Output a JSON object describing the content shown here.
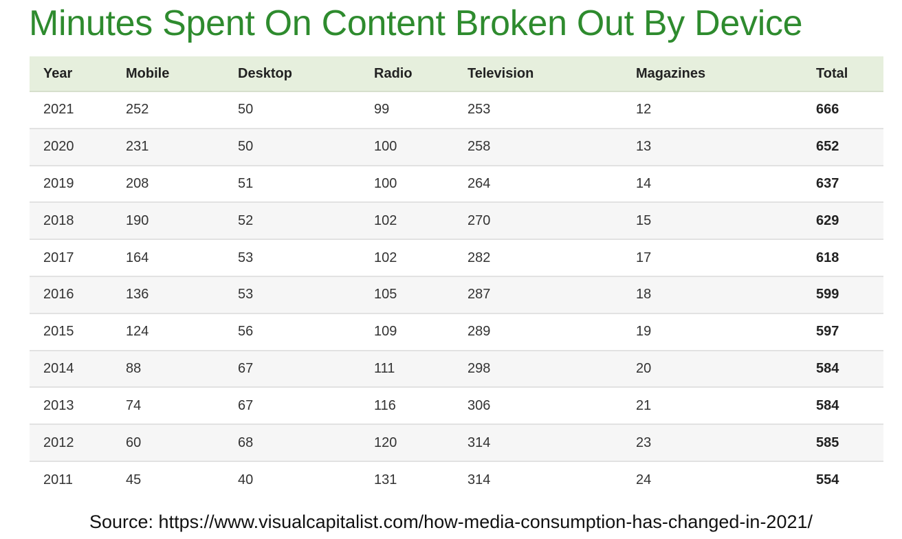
{
  "title": "Minutes Spent On Content Broken Out By Device",
  "source": "Source: https://www.visualcapitalist.com/how-media-consumption-has-changed-in-2021/",
  "colors": {
    "title": "#2e8b2e",
    "header_bg": "#e6efdd",
    "stripe": "#f6f6f6"
  },
  "chart_data": {
    "type": "table",
    "title": "Minutes Spent On Content Broken Out By Device",
    "columns": [
      "Year",
      "Mobile",
      "Desktop",
      "Radio",
      "Television",
      "Magazines",
      "Total"
    ],
    "rows": [
      [
        "2021",
        "252",
        "50",
        "99",
        "253",
        "12",
        "666"
      ],
      [
        "2020",
        "231",
        "50",
        "100",
        "258",
        "13",
        "652"
      ],
      [
        "2019",
        "208",
        "51",
        "100",
        "264",
        "14",
        "637"
      ],
      [
        "2018",
        "190",
        "52",
        "102",
        "270",
        "15",
        "629"
      ],
      [
        "2017",
        "164",
        "53",
        "102",
        "282",
        "17",
        "618"
      ],
      [
        "2016",
        "136",
        "53",
        "105",
        "287",
        "18",
        "599"
      ],
      [
        "2015",
        "124",
        "56",
        "109",
        "289",
        "19",
        "597"
      ],
      [
        "2014",
        "88",
        "67",
        "111",
        "298",
        "20",
        "584"
      ],
      [
        "2013",
        "74",
        "67",
        "116",
        "306",
        "21",
        "584"
      ],
      [
        "2012",
        "60",
        "68",
        "120",
        "314",
        "23",
        "585"
      ],
      [
        "2011",
        "45",
        "40",
        "131",
        "314",
        "24",
        "554"
      ]
    ]
  }
}
